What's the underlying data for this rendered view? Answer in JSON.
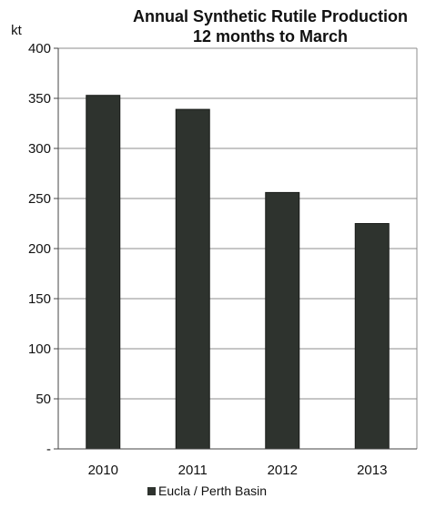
{
  "chart_data": {
    "type": "bar",
    "title_line1": "Annual Synthetic Rutile Production",
    "title_line2": "12 months to March",
    "ylabel": "kt",
    "categories": [
      "2010",
      "2011",
      "2012",
      "2013"
    ],
    "series": [
      {
        "name": "Eucla / Perth Basin",
        "values": [
          353,
          339,
          256,
          225
        ]
      }
    ],
    "ylim": [
      0,
      400
    ],
    "y_ticks": [
      0,
      50,
      100,
      150,
      200,
      250,
      300,
      350,
      400
    ],
    "y_tick_labels": [
      "-",
      "50",
      "100",
      "150",
      "200",
      "250",
      "300",
      "350",
      "400"
    ],
    "grid": true,
    "legend_position": "bottom",
    "bar_color": "#2e332e"
  }
}
